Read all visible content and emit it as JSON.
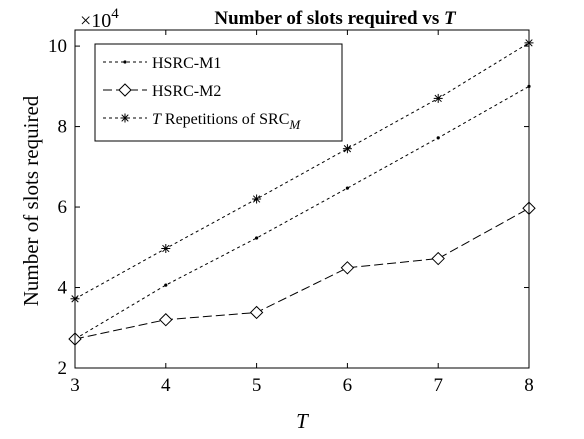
{
  "chart_data": {
    "type": "line",
    "title": "Number of slots required vs",
    "title_var": "T",
    "xlabel": "T",
    "ylabel": "Number of slots required",
    "y_multiplier_base": "×10",
    "y_multiplier_exp": "4",
    "x": [
      3,
      4,
      5,
      6,
      7,
      8
    ],
    "xlim": [
      3,
      8
    ],
    "ylim": [
      2,
      10.4
    ],
    "xticks": [
      3,
      4,
      5,
      6,
      7,
      8
    ],
    "yticks": [
      2,
      4,
      6,
      8,
      10
    ],
    "grid": false,
    "legend_position": "top-left",
    "series": [
      {
        "name": "HSRC-M1",
        "marker": "dot",
        "dash": "3,3",
        "values": [
          2.72,
          4.06,
          5.23,
          6.47,
          7.72,
          9.0
        ]
      },
      {
        "name": "HSRC-M2",
        "marker": "diamond",
        "dash": "9,4",
        "values": [
          2.72,
          3.2,
          3.38,
          4.49,
          4.72,
          5.97
        ]
      },
      {
        "name_prefix": "T",
        "name_main": " Repetitions of SRC",
        "name_sub": "M",
        "marker": "asterisk",
        "dash": "3,3",
        "values": [
          3.72,
          4.97,
          6.2,
          7.45,
          8.7,
          10.08
        ]
      }
    ]
  }
}
